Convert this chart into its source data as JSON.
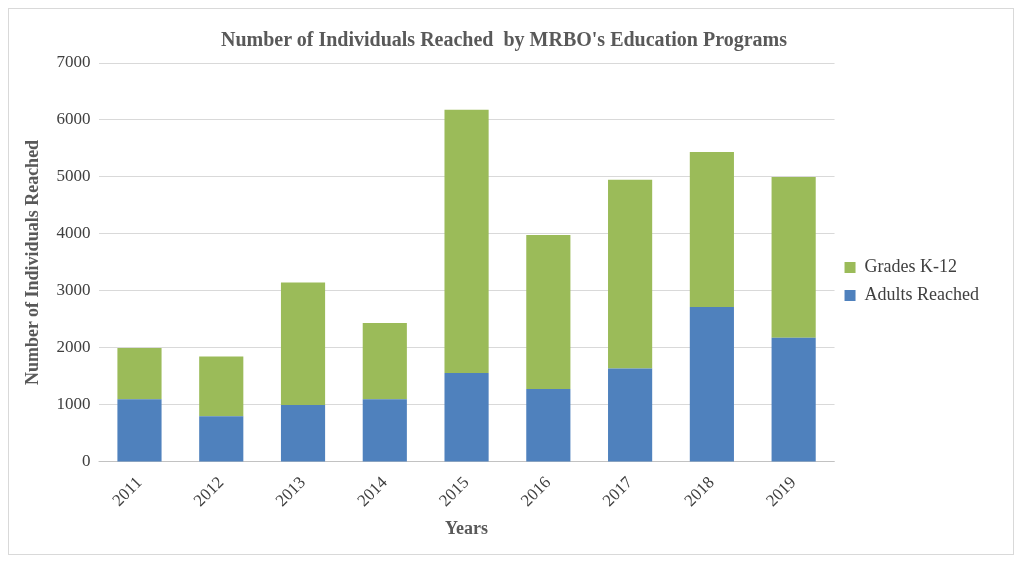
{
  "chart_data": {
    "type": "bar",
    "title": "Number of Individuals Reached  by MRBO's Education Programs",
    "xlabel": "Years",
    "ylabel": "Number of Individuals Reached",
    "categories": [
      "2011",
      "2012",
      "2013",
      "2014",
      "2015",
      "2016",
      "2017",
      "2018",
      "2019"
    ],
    "stacked": true,
    "series": [
      {
        "name": "Adults Reached",
        "color": "#4f81bd",
        "values": [
          1100,
          800,
          1000,
          1100,
          1560,
          1280,
          1640,
          2720,
          2180
        ]
      },
      {
        "name": "Grades K-12",
        "color": "#9bbb59",
        "values": [
          900,
          1050,
          2150,
          1340,
          4620,
          2700,
          3310,
          2720,
          2820
        ]
      }
    ],
    "ylim": [
      0,
      7000
    ],
    "yticks": [
      0,
      1000,
      2000,
      3000,
      4000,
      5000,
      6000,
      7000
    ],
    "grid": "y",
    "legend": "right"
  }
}
